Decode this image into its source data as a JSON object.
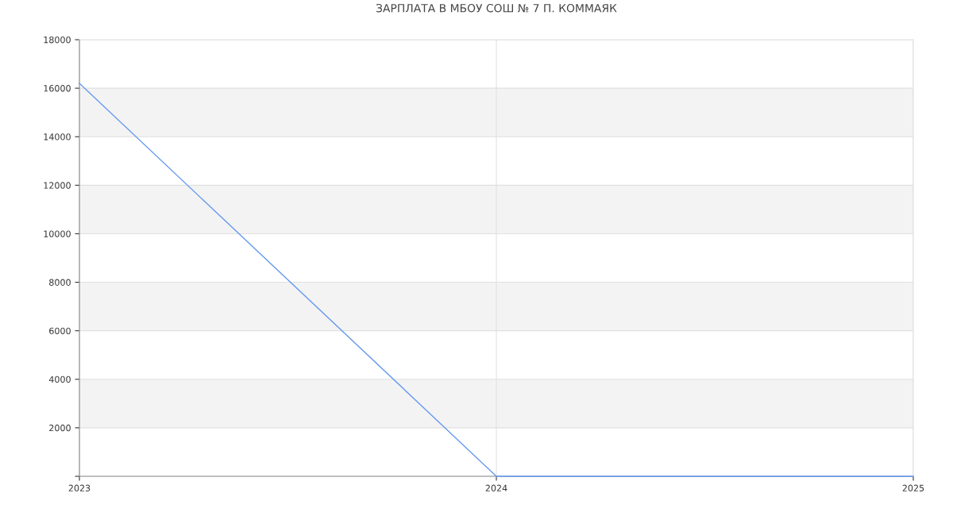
{
  "chart_data": {
    "type": "line",
    "title": "ЗАРПЛАТА В МБОУ СОШ № 7 П. КОММАЯК",
    "x": [
      "2023",
      "2024",
      "2025"
    ],
    "series": [
      {
        "color": "#6699ee",
        "values": [
          16200,
          0,
          0
        ]
      }
    ],
    "xlim": [
      "2023",
      "2025"
    ],
    "xticks": [
      "2023",
      "2024",
      "2025"
    ],
    "ylim": [
      0,
      18000
    ],
    "yticks": [
      {
        "value": 0,
        "label": null
      },
      2000,
      4000,
      6000,
      8000,
      10000,
      12000,
      14000,
      16000,
      18000
    ],
    "grid": true,
    "marker": "none",
    "line_style": "solid"
  }
}
